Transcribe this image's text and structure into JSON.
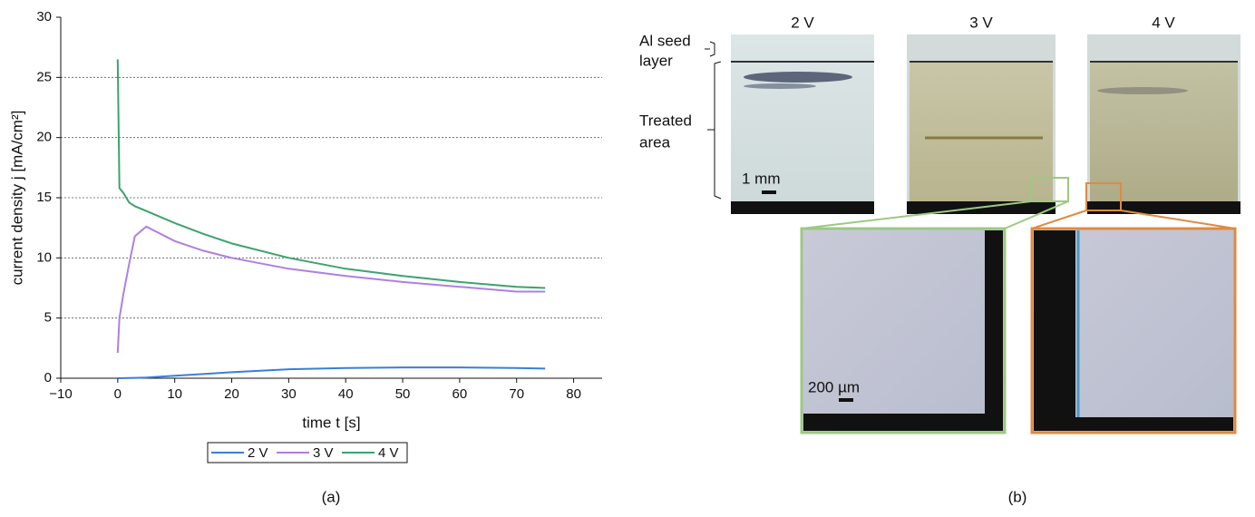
{
  "chart_data": {
    "type": "line",
    "x_label": "time t [s]",
    "y_label": "current density j [mA/cm²]",
    "x": [
      0,
      0.3,
      1,
      2,
      3,
      5,
      10,
      15,
      20,
      30,
      40,
      50,
      60,
      70,
      75
    ],
    "series": [
      {
        "name": "2 V",
        "color": "#3a7fd5",
        "values": [
          0,
          0,
          0.01,
          0.02,
          0.03,
          0.05,
          0.2,
          0.35,
          0.5,
          0.75,
          0.85,
          0.9,
          0.9,
          0.85,
          0.8
        ]
      },
      {
        "name": "3 V",
        "color": "#b07fe0",
        "values": [
          2.1,
          5.0,
          7.0,
          9.5,
          11.8,
          12.6,
          11.4,
          10.6,
          10.0,
          9.1,
          8.5,
          8.0,
          7.6,
          7.2,
          7.2
        ]
      },
      {
        "name": "4 V",
        "color": "#3aa46e",
        "values": [
          26.5,
          15.8,
          15.4,
          14.6,
          14.3,
          13.9,
          12.9,
          12.0,
          11.2,
          10.0,
          9.1,
          8.5,
          8.0,
          7.6,
          7.5
        ]
      }
    ],
    "xlim": [
      -10,
      85
    ],
    "ylim": [
      0,
      30
    ],
    "xticks": [
      {
        "value": -10,
        "label": "−10"
      },
      0,
      10,
      20,
      30,
      40,
      50,
      60,
      70,
      80
    ],
    "yticks": [
      0,
      5,
      10,
      15,
      20,
      25,
      30
    ],
    "grid": true,
    "legend": "bottom",
    "caption": "(a)"
  },
  "panel_b": {
    "voltages": [
      "2 V",
      "3 V",
      "4 V"
    ],
    "seed_label": [
      "Al seed",
      "layer"
    ],
    "treated_label": [
      "Treated",
      "area"
    ],
    "scale_1": "1 mm",
    "scale_2": "200 µm",
    "caption": "(b)"
  }
}
